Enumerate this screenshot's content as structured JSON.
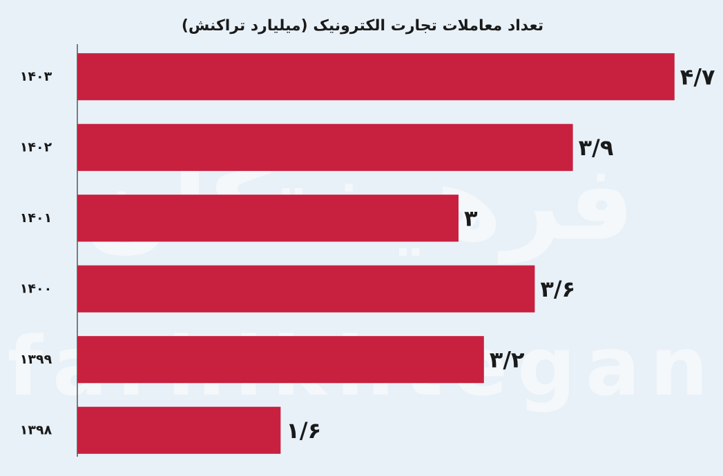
{
  "chart_data": {
    "type": "bar",
    "orientation": "horizontal",
    "title": "تعداد معاملات تجارت الکترونیک (میلیارد تراکنش)",
    "categories": [
      "۱۴۰۳",
      "۱۴۰۲",
      "۱۴۰۱",
      "۱۴۰۰",
      "۱۳۹۹",
      "۱۳۹۸"
    ],
    "values": [
      4.7,
      3.9,
      3,
      3.6,
      3.2,
      1.6
    ],
    "value_labels": [
      "۴/۷",
      "۳/۹",
      "۳",
      "۳/۶",
      "۳/۲",
      "۱/۶"
    ],
    "color": "#c8203f",
    "xlim": [
      0,
      5
    ]
  },
  "watermark": {
    "brand": "فرهیختگان",
    "latin": "farhikhtegan"
  }
}
